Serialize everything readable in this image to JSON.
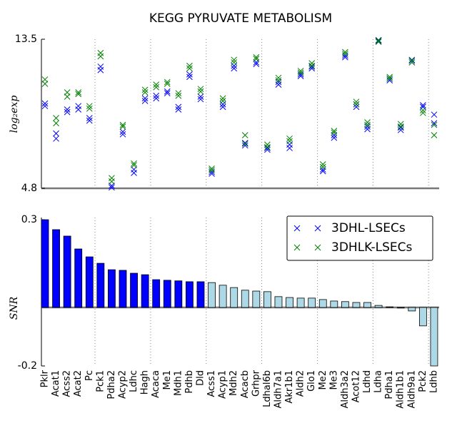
{
  "chart_data": [
    {
      "type": "scatter",
      "title": "KEGG PYRUVATE METABOLISM",
      "ylabel": "log₂exp",
      "ylim": [
        4.8,
        13.5
      ],
      "yticks": [
        4.8,
        13.5
      ],
      "series": [
        {
          "name": "3DHL-LSECs",
          "color": "#0000ff",
          "values": [
            [
              9.75,
              9.6
            ],
            [
              8.0,
              7.7
            ],
            [
              9.4,
              9.25
            ],
            [
              9.6,
              9.4
            ],
            [
              8.9,
              8.75
            ],
            [
              11.9,
              11.7
            ],
            [
              4.95,
              4.85
            ],
            [
              8.1,
              7.95
            ],
            [
              5.9,
              5.7
            ],
            [
              10.05,
              9.9
            ],
            [
              10.2,
              10.05
            ],
            [
              10.45,
              10.35
            ],
            [
              9.55,
              9.4
            ],
            [
              11.45,
              11.3
            ],
            [
              10.15,
              10.0
            ],
            [
              5.75,
              5.65
            ],
            [
              9.7,
              9.55
            ],
            [
              11.95,
              11.8
            ],
            [
              7.45,
              7.3
            ],
            [
              12.15,
              12.05
            ],
            [
              7.15,
              7.05
            ],
            [
              11.0,
              10.85
            ],
            [
              7.35,
              7.15
            ],
            [
              11.45,
              11.35
            ],
            [
              11.9,
              11.8
            ],
            [
              5.9,
              5.8
            ],
            [
              7.9,
              7.75
            ],
            [
              12.55,
              12.45
            ],
            [
              9.7,
              9.55
            ],
            [
              8.4,
              8.25
            ],
            [
              13.45,
              13.4
            ],
            [
              11.2,
              11.1
            ],
            [
              8.35,
              8.2
            ],
            [
              12.25,
              12.15
            ],
            [
              9.65,
              9.55
            ],
            [
              9.1,
              8.6
            ]
          ]
        },
        {
          "name": "3DHLK-LSECs",
          "color": "#008000",
          "values": [
            [
              11.15,
              10.9
            ],
            [
              8.9,
              8.6
            ],
            [
              10.4,
              10.15
            ],
            [
              10.4,
              10.3
            ],
            [
              9.6,
              9.45
            ],
            [
              12.7,
              12.5
            ],
            [
              5.4,
              5.2
            ],
            [
              8.5,
              8.4
            ],
            [
              6.25,
              6.15
            ],
            [
              10.55,
              10.4
            ],
            [
              10.85,
              10.7
            ],
            [
              11.0,
              10.9
            ],
            [
              10.35,
              10.2
            ],
            [
              11.95,
              11.8
            ],
            [
              10.6,
              10.45
            ],
            [
              5.95,
              5.85
            ],
            [
              10.05,
              9.9
            ],
            [
              12.3,
              12.15
            ],
            [
              7.9,
              7.4
            ],
            [
              12.45,
              12.35
            ],
            [
              7.35,
              7.2
            ],
            [
              11.25,
              11.1
            ],
            [
              7.7,
              7.55
            ],
            [
              11.65,
              11.55
            ],
            [
              12.1,
              11.95
            ],
            [
              6.2,
              6.05
            ],
            [
              8.15,
              8.05
            ],
            [
              12.75,
              12.65
            ],
            [
              9.85,
              9.7
            ],
            [
              8.65,
              8.5
            ],
            [
              13.45,
              13.35
            ],
            [
              11.3,
              11.2
            ],
            [
              8.55,
              8.4
            ],
            [
              12.3,
              12.15
            ],
            [
              9.35,
              9.2
            ],
            [
              8.5,
              7.9
            ]
          ]
        }
      ]
    },
    {
      "type": "bar",
      "ylabel": "SNR",
      "ylim": [
        -0.2,
        0.3
      ],
      "yticks": [
        -0.2,
        0.3
      ],
      "legend": "upper right",
      "categories": [
        "Pklr",
        "Acat1",
        "Acss2",
        "Acat2",
        "Pc",
        "Pck1",
        "Pdha2",
        "Acyp2",
        "Ldhc",
        "Hagh",
        "Acaca",
        "Me1",
        "Mdh1",
        "Pdhb",
        "Dld",
        "Acss1",
        "Acyp1",
        "Mdh2",
        "Acacb",
        "Grhpr",
        "Ldhal6b",
        "Aldh7a1",
        "Akr1b1",
        "Aldh2",
        "Glo1",
        "Me2",
        "Me3",
        "Aldh3a2",
        "Acot12",
        "Ldhd",
        "Ldha",
        "Pdha1",
        "Aldh1b1",
        "Aldh9a1",
        "Pck2",
        "Ldhb"
      ],
      "values": [
        0.3,
        0.266,
        0.244,
        0.2,
        0.173,
        0.151,
        0.129,
        0.127,
        0.117,
        0.112,
        0.095,
        0.093,
        0.091,
        0.088,
        0.088,
        0.085,
        0.076,
        0.068,
        0.059,
        0.056,
        0.054,
        0.037,
        0.034,
        0.032,
        0.032,
        0.027,
        0.022,
        0.02,
        0.017,
        0.017,
        0.007,
        0.002,
        -0.002,
        -0.012,
        -0.063,
        -0.2
      ],
      "colors": [
        "#0000ff",
        "#0000ff",
        "#0000ff",
        "#0000ff",
        "#0000ff",
        "#0000ff",
        "#0000ff",
        "#0000ff",
        "#0000ff",
        "#0000ff",
        "#0000ff",
        "#0000ff",
        "#0000ff",
        "#0000ff",
        "#0000ff",
        "#add8e6",
        "#add8e6",
        "#add8e6",
        "#add8e6",
        "#add8e6",
        "#add8e6",
        "#add8e6",
        "#add8e6",
        "#add8e6",
        "#add8e6",
        "#add8e6",
        "#add8e6",
        "#add8e6",
        "#add8e6",
        "#add8e6",
        "#add8e6",
        "#add8e6",
        "#add8e6",
        "#add8e6",
        "#add8e6",
        "#add8e6"
      ]
    }
  ]
}
